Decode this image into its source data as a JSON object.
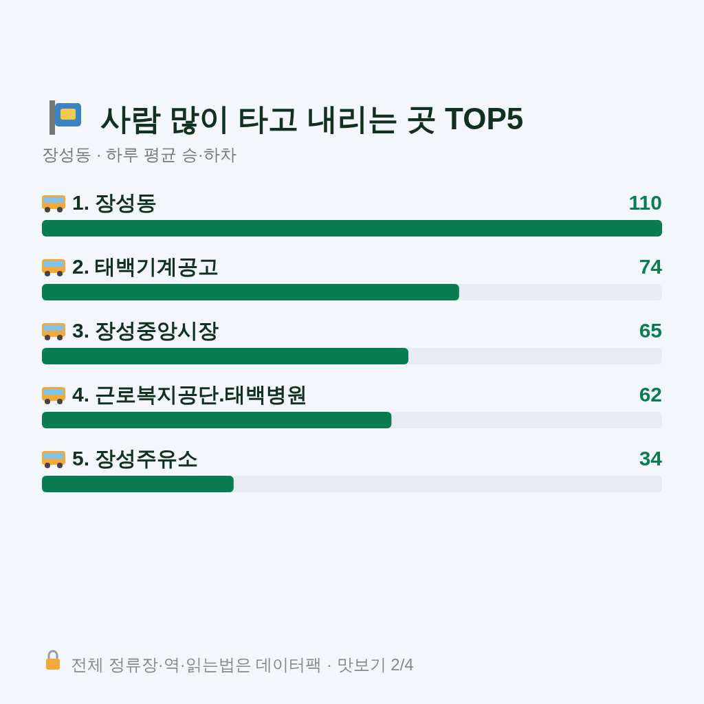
{
  "chart_data": {
    "type": "bar",
    "orientation": "horizontal",
    "title": "사람 많이 타고 내리는 곳 TOP5",
    "subtitle": "장성동 · 하루 평균 승·하차",
    "categories": [
      "1. 장성동",
      "2. 태백기계공고",
      "3. 장성중앙시장",
      "4. 근로복지공단.태백병원",
      "5. 장성주유소"
    ],
    "values": [
      110,
      74,
      65,
      62,
      34
    ],
    "color": "#0a7c52",
    "xlim": [
      0,
      110
    ],
    "data_labels": true,
    "annotations": [
      "전체 정류장·역·읽는법은 데이터팩 · 맛보기 2/4"
    ]
  }
}
